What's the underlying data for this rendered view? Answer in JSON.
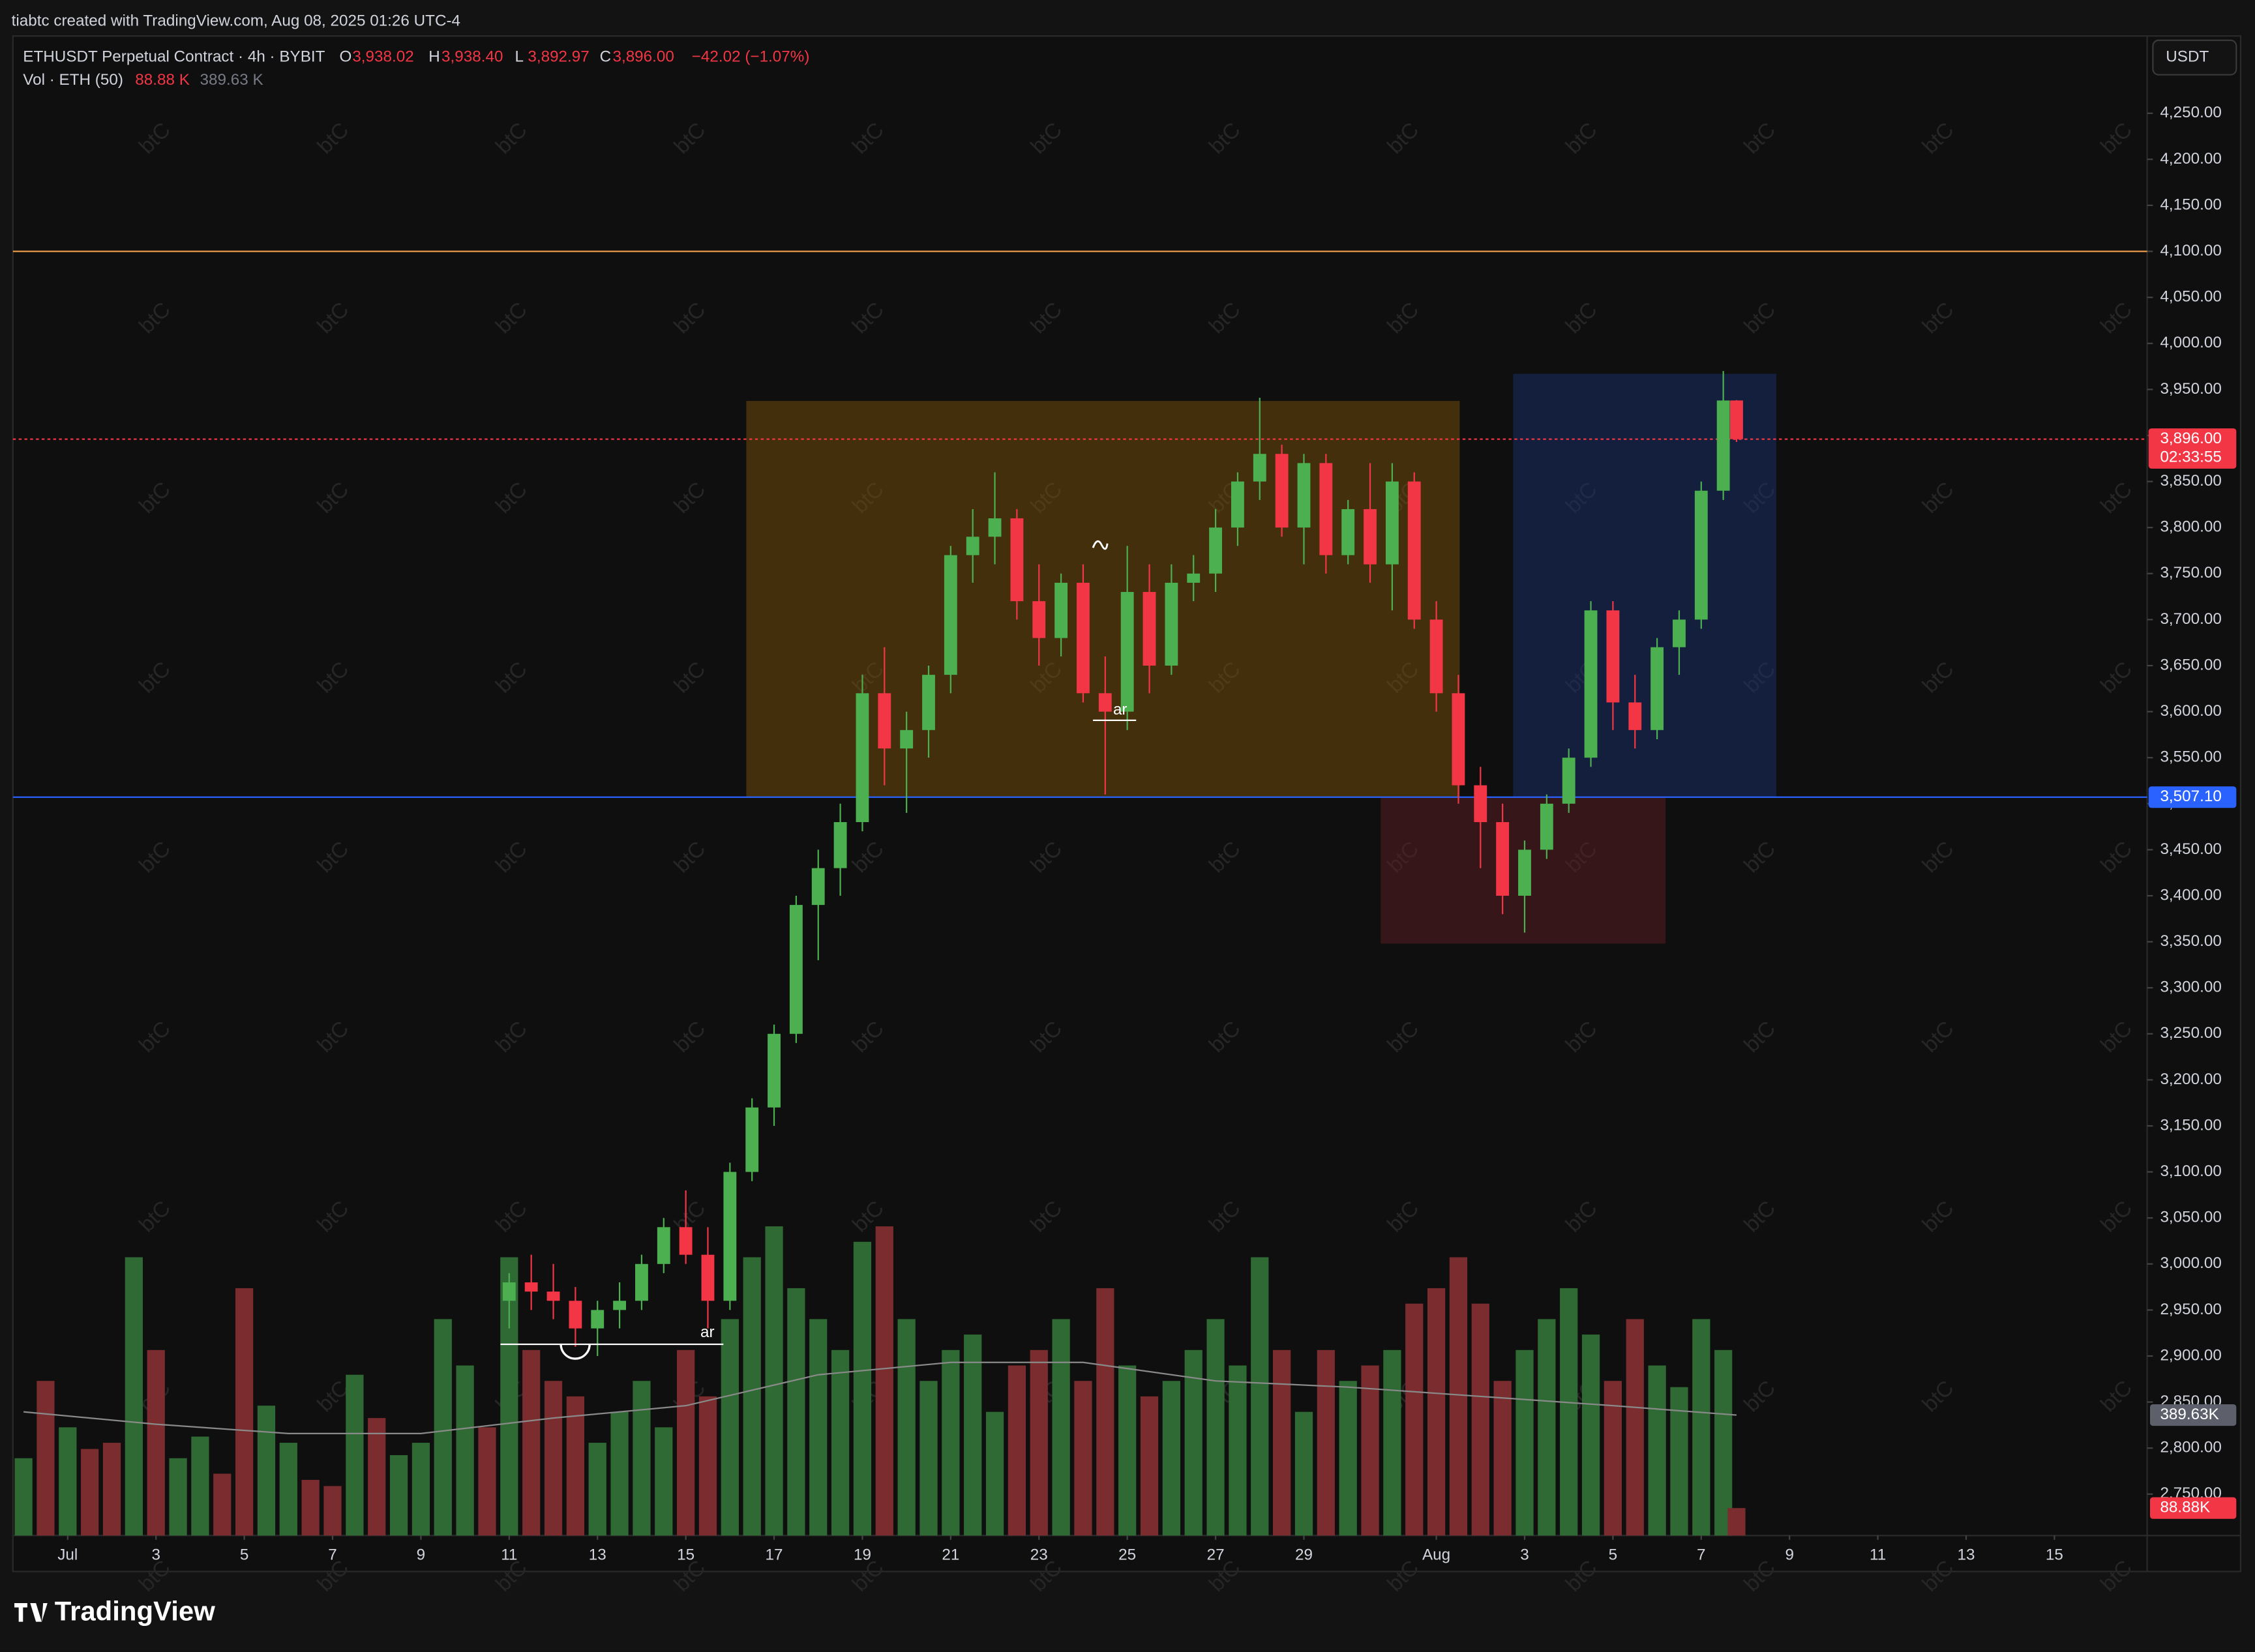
{
  "header": {
    "credit": "tiabtc created with TradingView.com, Aug 08, 2025 01:26 UTC-4",
    "symbol": "ETHUSDT Perpetual Contract · 4h · BYBIT",
    "ohlc": [
      {
        "key": "O",
        "value": "3,938.02"
      },
      {
        "key": "H",
        "value": "3,938.40"
      },
      {
        "key": "L",
        "value": "3,892.97"
      },
      {
        "key": "C",
        "value": "3,896.00"
      }
    ],
    "change": "−42.02 (−1.07%)",
    "vol_label": "Vol · ETH (50)",
    "vol_value": "88.88 K",
    "vol_ma": "389.63 K",
    "currency": "USDT",
    "brand": "TradingView",
    "watermark": "btC",
    "annotations": [
      "ar",
      "ar"
    ]
  },
  "chart_data": {
    "type": "candlestick",
    "up_color": "#4caf50",
    "down_color": "#f23645",
    "xlim": [
      -1.24,
      47.1
    ],
    "ylim": [
      2705,
      4334
    ],
    "xticks": [
      {
        "value": 0,
        "label": "Jul"
      },
      {
        "value": 2,
        "label": "3"
      },
      {
        "value": 4,
        "label": "5"
      },
      {
        "value": 6,
        "label": "7"
      },
      {
        "value": 8,
        "label": "9"
      },
      {
        "value": 10,
        "label": "11"
      },
      {
        "value": 12,
        "label": "13"
      },
      {
        "value": 14,
        "label": "15"
      },
      {
        "value": 16,
        "label": "17"
      },
      {
        "value": 18,
        "label": "19"
      },
      {
        "value": 20,
        "label": "21"
      },
      {
        "value": 22,
        "label": "23"
      },
      {
        "value": 24,
        "label": "25"
      },
      {
        "value": 26,
        "label": "27"
      },
      {
        "value": 28,
        "label": "29"
      },
      {
        "value": 31,
        "label": "Aug"
      },
      {
        "value": 33,
        "label": "3"
      },
      {
        "value": 35,
        "label": "5"
      },
      {
        "value": 37,
        "label": "7"
      },
      {
        "value": 39,
        "label": "9"
      },
      {
        "value": 41,
        "label": "11"
      },
      {
        "value": 43,
        "label": "13"
      },
      {
        "value": 45,
        "label": "15"
      }
    ],
    "yticks": [
      {
        "value": 2750,
        "label": "2,750.00"
      },
      {
        "value": 2800,
        "label": "2,800.00"
      },
      {
        "value": 2850,
        "label": "2,850.00"
      },
      {
        "value": 2900,
        "label": "2,900.00"
      },
      {
        "value": 2950,
        "label": "2,950.00"
      },
      {
        "value": 3000,
        "label": "3,000.00"
      },
      {
        "value": 3050,
        "label": "3,050.00"
      },
      {
        "value": 3100,
        "label": "3,100.00"
      },
      {
        "value": 3150,
        "label": "3,150.00"
      },
      {
        "value": 3200,
        "label": "3,200.00"
      },
      {
        "value": 3250,
        "label": "3,250.00"
      },
      {
        "value": 3300,
        "label": "3,300.00"
      },
      {
        "value": 3350,
        "label": "3,350.00"
      },
      {
        "value": 3400,
        "label": "3,400.00"
      },
      {
        "value": 3450,
        "label": "3,450.00"
      },
      {
        "value": 3500,
        "label": "3,500.00"
      },
      {
        "value": 3550,
        "label": "3,550.00"
      },
      {
        "value": 3600,
        "label": "3,600.00"
      },
      {
        "value": 3650,
        "label": "3,650.00"
      },
      {
        "value": 3700,
        "label": "3,700.00"
      },
      {
        "value": 3750,
        "label": "3,750.00"
      },
      {
        "value": 3800,
        "label": "3,800.00"
      },
      {
        "value": 3850,
        "label": "3,850.00"
      },
      {
        "value": 3900,
        "label": "3,900.00"
      },
      {
        "value": 3950,
        "label": "3,950.00"
      },
      {
        "value": 4000,
        "label": "4,000.00"
      },
      {
        "value": 4050,
        "label": "4,050.00"
      },
      {
        "value": 4100,
        "label": "4,100.00"
      },
      {
        "value": 4150,
        "label": "4,150.00"
      },
      {
        "value": 4200,
        "label": "4,200.00"
      },
      {
        "value": 4250,
        "label": "4,250.00"
      }
    ],
    "candles": {
      "x": [
        10,
        10.5,
        11,
        11.5,
        12,
        12.5,
        13,
        13.5,
        14,
        14.5,
        15,
        15.5,
        16,
        16.5,
        17,
        17.5,
        18,
        18.5,
        19,
        19.5,
        20,
        20.5,
        21,
        21.5,
        22,
        22.5,
        23,
        23.5,
        24,
        24.5,
        25,
        25.5,
        26,
        26.5,
        27,
        27.5,
        28,
        28.5,
        29,
        29.5,
        30,
        30.5,
        31,
        31.5,
        32,
        32.5,
        33,
        33.5,
        34,
        34.5,
        35,
        35.5,
        36,
        36.5,
        37,
        37.5,
        37.8
      ],
      "open": [
        2960,
        2980,
        2970,
        2960,
        2930,
        2950,
        2960,
        3000,
        3040,
        3010,
        2960,
        3100,
        3170,
        3250,
        3390,
        3430,
        3480,
        3620,
        3560,
        3580,
        3640,
        3770,
        3790,
        3810,
        3720,
        3680,
        3740,
        3620,
        3600,
        3730,
        3650,
        3740,
        3750,
        3800,
        3850,
        3880,
        3800,
        3870,
        3770,
        3820,
        3760,
        3850,
        3700,
        3620,
        3520,
        3480,
        3400,
        3450,
        3500,
        3550,
        3710,
        3610,
        3580,
        3670,
        3700,
        3840,
        3938.02
      ],
      "high": [
        2990,
        3010,
        3000,
        2975,
        2960,
        2980,
        3010,
        3050,
        3080,
        3040,
        3110,
        3180,
        3260,
        3400,
        3450,
        3500,
        3640,
        3670,
        3600,
        3650,
        3780,
        3820,
        3860,
        3820,
        3760,
        3750,
        3760,
        3660,
        3780,
        3760,
        3760,
        3770,
        3820,
        3860,
        3941,
        3890,
        3880,
        3880,
        3830,
        3870,
        3870,
        3860,
        3720,
        3640,
        3540,
        3500,
        3460,
        3510,
        3560,
        3720,
        3720,
        3640,
        3680,
        3710,
        3850,
        3970,
        3938.4
      ],
      "low": [
        2930,
        2950,
        2940,
        2910,
        2900,
        2930,
        2950,
        2990,
        3000,
        2930,
        2950,
        3090,
        3150,
        3240,
        3330,
        3400,
        3470,
        3520,
        3490,
        3550,
        3620,
        3740,
        3760,
        3700,
        3650,
        3660,
        3610,
        3510,
        3580,
        3620,
        3640,
        3720,
        3730,
        3780,
        3830,
        3790,
        3760,
        3750,
        3760,
        3740,
        3710,
        3690,
        3600,
        3500,
        3430,
        3380,
        3360,
        3440,
        3490,
        3540,
        3580,
        3560,
        3570,
        3640,
        3690,
        3830,
        3892.97
      ],
      "close": [
        2980,
        2970,
        2960,
        2930,
        2950,
        2960,
        3000,
        3040,
        3010,
        2960,
        3100,
        3170,
        3250,
        3390,
        3430,
        3480,
        3620,
        3560,
        3580,
        3640,
        3770,
        3790,
        3810,
        3720,
        3680,
        3740,
        3620,
        3600,
        3730,
        3650,
        3740,
        3750,
        3800,
        3850,
        3880,
        3800,
        3870,
        3770,
        3820,
        3760,
        3850,
        3700,
        3620,
        3520,
        3480,
        3400,
        3450,
        3500,
        3550,
        3710,
        3610,
        3580,
        3670,
        3700,
        3840,
        3938,
        3896
      ]
    },
    "volume": {
      "color_up": "#2f6a34",
      "color_down": "#7a2c2e",
      "x": [
        -1,
        -0.5,
        0,
        0.5,
        1,
        1.5,
        2,
        2.5,
        3,
        3.5,
        4,
        4.5,
        5,
        5.5,
        6,
        6.5,
        7,
        7.5,
        8,
        8.5,
        9,
        9.5,
        10,
        10.5,
        11,
        11.5,
        12,
        12.5,
        13,
        13.5,
        14,
        14.5,
        15,
        15.5,
        16,
        16.5,
        17,
        17.5,
        18,
        18.5,
        19,
        19.5,
        20,
        20.5,
        21,
        21.5,
        22,
        22.5,
        23,
        23.5,
        24,
        24.5,
        25,
        25.5,
        26,
        26.5,
        27,
        27.5,
        28,
        28.5,
        29,
        29.5,
        30,
        30.5,
        31,
        31.5,
        32,
        32.5,
        33,
        33.5,
        34,
        34.5,
        35,
        35.5,
        36,
        36.5,
        37,
        37.5,
        37.8
      ],
      "values": [
        250,
        500,
        350,
        280,
        300,
        900,
        600,
        250,
        320,
        200,
        800,
        420,
        300,
        180,
        160,
        520,
        380,
        260,
        300,
        700,
        550,
        350,
        900,
        600,
        500,
        450,
        300,
        400,
        500,
        350,
        600,
        450,
        700,
        900,
        1000,
        800,
        700,
        600,
        950,
        1000,
        700,
        500,
        600,
        650,
        400,
        550,
        600,
        700,
        500,
        800,
        550,
        450,
        500,
        600,
        700,
        550,
        900,
        600,
        400,
        600,
        500,
        550,
        600,
        750,
        800,
        900,
        750,
        500,
        600,
        700,
        800,
        650,
        500,
        700,
        550,
        480,
        700,
        600,
        88.88
      ],
      "up": [
        true,
        false,
        true,
        false,
        false,
        true,
        false,
        true,
        true,
        false,
        false,
        true,
        true,
        false,
        false,
        true,
        false,
        true,
        true,
        true,
        true,
        false,
        true,
        false,
        false,
        false,
        true,
        true,
        true,
        true,
        false,
        false,
        true,
        true,
        true,
        true,
        true,
        true,
        true,
        false,
        true,
        true,
        true,
        true,
        true,
        false,
        false,
        true,
        false,
        false,
        true,
        false,
        true,
        true,
        true,
        true,
        true,
        false,
        true,
        false,
        true,
        false,
        true,
        false,
        false,
        false,
        false,
        false,
        true,
        true,
        true,
        true,
        false,
        false,
        true,
        true,
        true,
        true,
        false
      ]
    },
    "volume_ma": {
      "color": "#8a8a8a",
      "x": [
        -1,
        2,
        5,
        8,
        11,
        14,
        17,
        20,
        23,
        26,
        29,
        32,
        35,
        37.8
      ],
      "values": [
        400,
        360,
        330,
        330,
        380,
        420,
        520,
        560,
        560,
        500,
        480,
        450,
        420,
        389.63
      ]
    },
    "y2lim": [
      0,
      4850
    ],
    "y2ticks": [
      {
        "value": 389.63,
        "label": "389.63K",
        "color": "#5d606b"
      },
      {
        "value": 88.88,
        "label": "88.88K",
        "color": "#f23645"
      }
    ],
    "boxes": [
      {
        "x": [
          15.37,
          31.53
        ],
        "y": [
          3937.5,
          3507
        ],
        "color": "rgba(120,80,10,0.5)"
      },
      {
        "x": [
          32.74,
          38.7
        ],
        "y": [
          3967,
          3507
        ],
        "color": "rgba(25,45,100,0.55)"
      },
      {
        "x": [
          29.74,
          36.19
        ],
        "y": [
          3507,
          3348
        ],
        "color": "rgba(90,30,35,0.55)"
      }
    ],
    "hlines": [
      {
        "value": 4100,
        "color": "#f5a04a"
      }
    ],
    "price_tags": [
      {
        "value": 3896,
        "label": "3,896.00",
        "sub": "02:33:55",
        "color": "#f23645"
      },
      {
        "value": 3507.1,
        "label": "3,507.10",
        "color": "#2962ff"
      }
    ]
  }
}
